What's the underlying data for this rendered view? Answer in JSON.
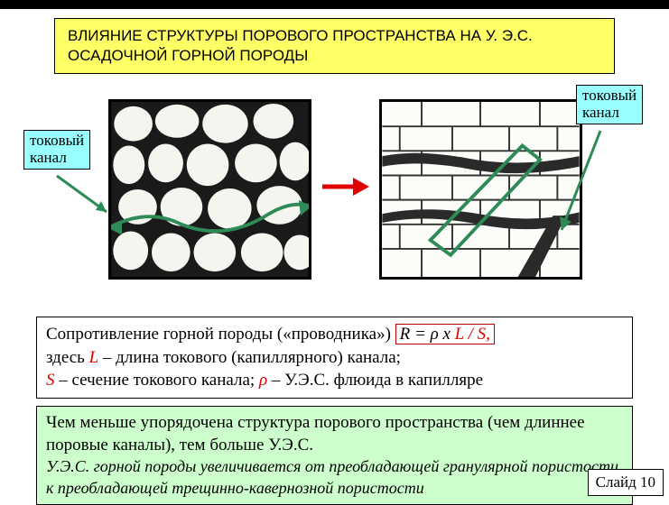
{
  "colors": {
    "title_bg": "#ffff66",
    "label_bg": "#99ffff",
    "conclusion_bg": "#ccffcc",
    "red_arrow": "#e00000",
    "green_path": "#2e8b57",
    "formula_border": "#c00000"
  },
  "title": "ВЛИЯНИЕ СТРУКТУРЫ ПОРОВОГО ПРОСТРАНСТВА НА У. Э.С. ОСАДОЧНОЙ ГОРНОЙ ПОРОДЫ",
  "label_left": "токовый\nканал",
  "label_right": "токовый\nканал",
  "formula": {
    "line1_prefix": "Сопротивление горной породы («проводника») ",
    "line1_formula_plain": "R = ρ x",
    "line1_formula_red": " L / S,",
    "line2_prefix": "здесь ",
    "line2_L": "L",
    "line2_after_L": " – длина токового (капиллярного) канала;",
    "line3_S": "S",
    "line3_mid": " – сечение токового канала; ",
    "line3_rho": "ρ",
    "line3_end": " – У.Э.С. флюида в капилляре"
  },
  "conclusion": {
    "line1": "Чем меньше упорядочена структура порового пространства (чем длиннее поровые каналы), тем больше У.Э.С.",
    "line2": "У.Э.С. горной породы увеличивается от преобладающей гранулярной пористости к преобладающей трещинно-кавернозной пористости"
  },
  "slide_num": "Слайд 10"
}
